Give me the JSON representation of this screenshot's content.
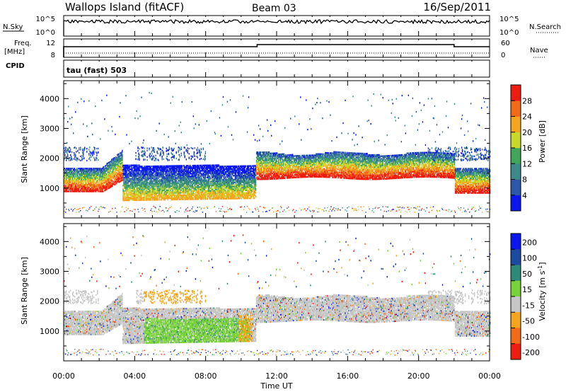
{
  "header": {
    "station": "Wallops Island (fitACF)",
    "beam": "Beam 03",
    "date": "16/Sep/2011"
  },
  "panel_labels": {
    "nsky": "N.Sky",
    "nsearch": "N.Search",
    "freq": "Freq.",
    "freq_unit": "[MHz]",
    "cpid": "CPID",
    "nave": "Nave",
    "mode": "tau (fast) 503"
  },
  "chart_data": [
    {
      "type": "line",
      "name": "noise",
      "yticks_left": [
        "10^5",
        "10^0"
      ],
      "yticks_right": [
        "10^5",
        "10^0"
      ]
    },
    {
      "type": "line",
      "name": "frequency",
      "yticks_left": [
        12,
        8
      ],
      "yticks_right": [
        60,
        0
      ],
      "step_times": [
        0,
        10.9,
        22.0,
        24
      ]
    },
    {
      "type": "heatmap",
      "name": "power",
      "ylabel": "Slant Range [km]",
      "yticks": [
        1000,
        2000,
        3000,
        4000
      ],
      "ylim": [
        0,
        4600
      ],
      "xlim": [
        0,
        24
      ],
      "colorbar": {
        "label": "Power [dB]",
        "ticks": [
          "4",
          "8",
          "12",
          "16",
          "20",
          "24",
          "28"
        ],
        "colors": [
          "#0a18f0",
          "#2b58a8",
          "#3d8a8a",
          "#41a65a",
          "#c9d92a",
          "#f5a51c",
          "#f46a17",
          "#ee1c10"
        ]
      }
    },
    {
      "type": "heatmap",
      "name": "velocity",
      "ylabel": "Slant Range [km]",
      "yticks": [
        1000,
        2000,
        3000,
        4000
      ],
      "ylim": [
        0,
        4600
      ],
      "xlim": [
        0,
        24
      ],
      "xticks": [
        "00:00",
        "04:00",
        "08:00",
        "12:00",
        "16:00",
        "20:00",
        "00:00"
      ],
      "xlabel": "Time UT",
      "colorbar": {
        "label": "Velocity [m s",
        "label_sup": "-1",
        "label_close": "]",
        "ticks": [
          "200",
          "100",
          "50",
          "15",
          "-15",
          "-50",
          "-100",
          "-200"
        ],
        "colors": [
          "#0a18f0",
          "#1c4aa0",
          "#2e8a78",
          "#7ad23a",
          "#c6c6c6",
          "#f5a51c",
          "#f46a17",
          "#ee1c10"
        ]
      }
    }
  ]
}
